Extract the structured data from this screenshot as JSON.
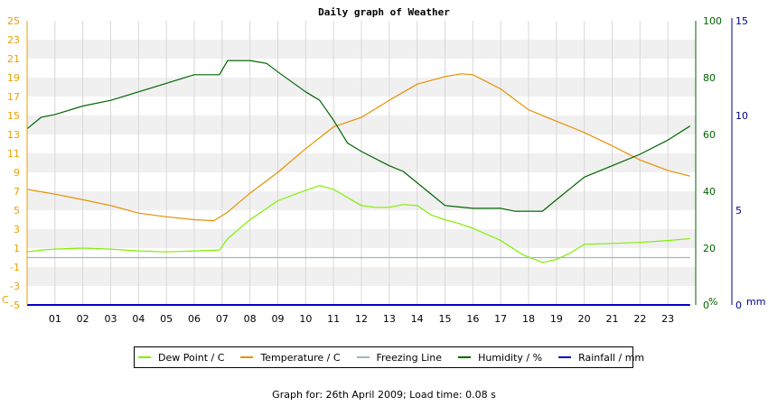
{
  "chart_data": {
    "type": "line",
    "title": "Daily graph of Weather",
    "x_ticks": [
      "01",
      "02",
      "03",
      "04",
      "05",
      "06",
      "07",
      "08",
      "09",
      "10",
      "11",
      "12",
      "13",
      "14",
      "15",
      "16",
      "17",
      "18",
      "19",
      "20",
      "21",
      "22",
      "23"
    ],
    "xlim": [
      0,
      24
    ],
    "axes": {
      "left": {
        "unit": "C",
        "ticks": [
          -5,
          -3,
          -1,
          1,
          3,
          5,
          7,
          9,
          11,
          13,
          15,
          17,
          19,
          21,
          23,
          25
        ],
        "range": [
          -5,
          25
        ],
        "color": "#e8a000"
      },
      "right1": {
        "unit": "%",
        "ticks": [
          0,
          20,
          40,
          60,
          80,
          100
        ],
        "range": [
          0,
          100
        ],
        "color": "#006400"
      },
      "right2": {
        "unit": "mm",
        "ticks": [
          0,
          5,
          10,
          15
        ],
        "range": [
          0,
          15
        ],
        "color": "#00008b"
      }
    },
    "series": [
      {
        "name": "Dew Point / C",
        "axis": "left",
        "color": "#80f000",
        "x": [
          0,
          0.5,
          1,
          2,
          3,
          4,
          5,
          6,
          6.9,
          7.2,
          8,
          9,
          10,
          10.5,
          11,
          12,
          12.5,
          13,
          13.5,
          14,
          14.5,
          15,
          15.5,
          16,
          17,
          17.8,
          18.5,
          19,
          19.5,
          20,
          21,
          22,
          23,
          23.8
        ],
        "y": [
          0.6,
          0.8,
          0.9,
          1.0,
          0.9,
          0.7,
          0.6,
          0.7,
          0.8,
          2.0,
          4.0,
          6.0,
          7.1,
          7.6,
          7.2,
          5.5,
          5.3,
          5.3,
          5.6,
          5.5,
          4.5,
          4.0,
          3.6,
          3.1,
          1.8,
          0.3,
          -0.5,
          -0.2,
          0.5,
          1.4,
          1.5,
          1.6,
          1.8,
          2.0
        ]
      },
      {
        "name": "Temperature / C",
        "axis": "left",
        "color": "#e89000",
        "x": [
          0,
          1,
          2,
          3,
          4,
          5,
          6,
          6.7,
          7.2,
          8,
          9,
          10,
          11,
          12,
          13,
          14,
          15,
          15.6,
          16,
          17,
          18,
          19,
          20,
          21,
          22,
          23,
          23.8
        ],
        "y": [
          7.2,
          6.7,
          6.1,
          5.5,
          4.7,
          4.3,
          4.0,
          3.9,
          4.8,
          6.8,
          9.0,
          11.5,
          13.8,
          14.8,
          16.6,
          18.3,
          19.1,
          19.4,
          19.3,
          17.8,
          15.6,
          14.4,
          13.2,
          11.8,
          10.3,
          9.2,
          8.6
        ]
      },
      {
        "name": "Freezing Line",
        "axis": "left",
        "color": "#a0b4c8",
        "x": [
          0,
          23.8
        ],
        "y": [
          0,
          0
        ]
      },
      {
        "name": "Humidity / %",
        "axis": "right1",
        "color": "#006400",
        "x": [
          0,
          0.5,
          1,
          2,
          3,
          4,
          5,
          6,
          6.9,
          7.2,
          8,
          8.6,
          9,
          10,
          10.5,
          11,
          11.5,
          12,
          13,
          13.5,
          14,
          14.5,
          15,
          16,
          17,
          17.5,
          18,
          18.5,
          19,
          19.5,
          20,
          21,
          22,
          23,
          23.8
        ],
        "y": [
          62,
          66,
          67,
          70,
          72,
          75,
          78,
          81,
          81,
          86,
          86,
          85,
          82,
          75,
          72,
          65,
          57,
          54,
          49,
          47,
          43,
          39,
          35,
          34,
          34,
          33,
          33,
          33,
          37,
          41,
          45,
          49,
          53,
          58,
          63
        ]
      },
      {
        "name": "Rainfall / mm",
        "axis": "right2",
        "color": "#0000cc",
        "x": [
          0,
          23.8
        ],
        "y": [
          0,
          0
        ]
      }
    ],
    "grid": true,
    "legend_position": "bottom"
  },
  "legend": {
    "items": [
      {
        "label": "Dew Point / C",
        "color": "#80f000"
      },
      {
        "label": "Temperature / C",
        "color": "#e89000"
      },
      {
        "label": "Freezing Line",
        "color": "#a0b4c8"
      },
      {
        "label": "Humidity / %",
        "color": "#006400"
      },
      {
        "label": "Rainfall / mm",
        "color": "#0000cc"
      }
    ]
  },
  "footer": {
    "text": "Graph for: 26th April 2009; Load time: 0.08 s"
  }
}
